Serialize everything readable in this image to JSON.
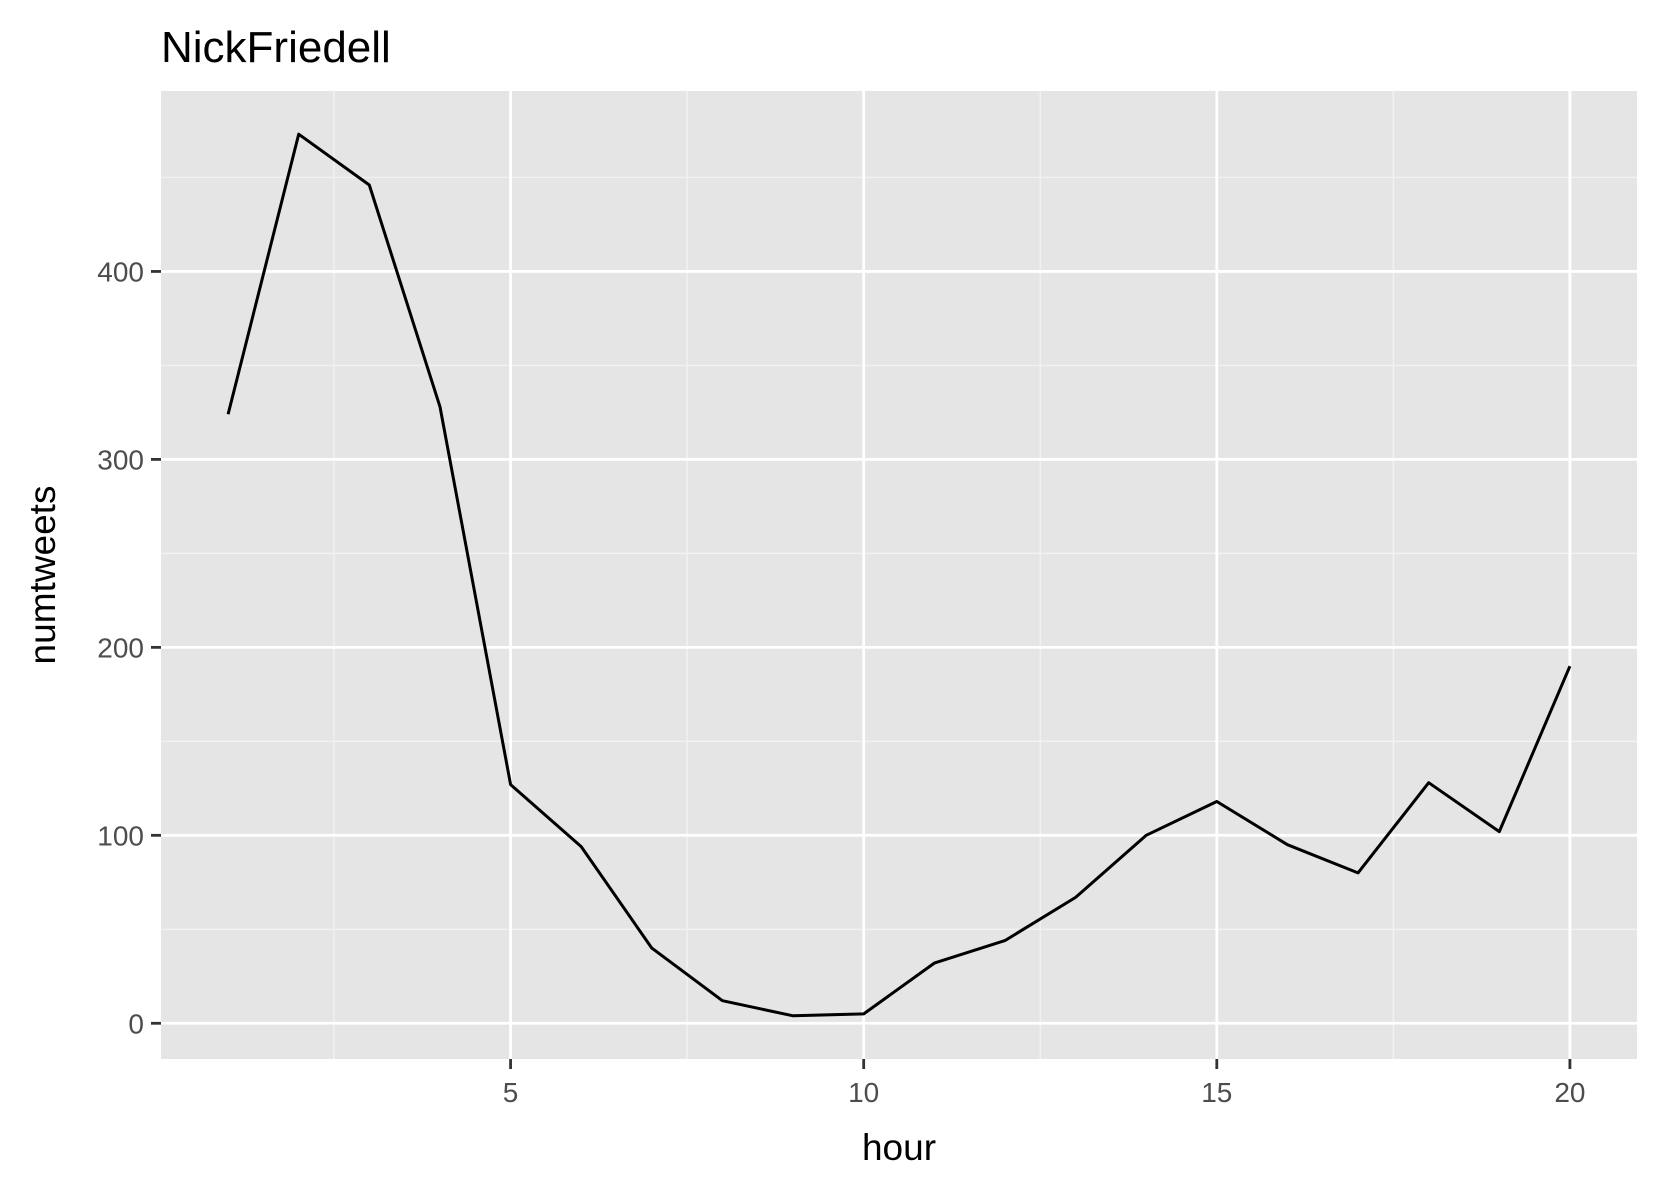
{
  "colors": {
    "panel_background": "#e5e5e5",
    "grid_major": "#ffffff",
    "grid_minor": "#f2f2f2",
    "line": "#000000",
    "tick_label": "#4d4d4d",
    "tick_mark": "#333333"
  },
  "chart_data": {
    "type": "line",
    "title": "NickFriedell",
    "xlabel": "hour",
    "ylabel": "numtweets",
    "xlim": [
      0.05,
      20.95
    ],
    "ylim": [
      -19,
      496
    ],
    "x_ticks": [
      5,
      10,
      15,
      20
    ],
    "x_tick_labels": [
      "5",
      "10",
      "15",
      "20"
    ],
    "y_ticks": [
      0,
      100,
      200,
      300,
      400
    ],
    "y_tick_labels": [
      "0",
      "100",
      "200",
      "300",
      "400"
    ],
    "grid": true,
    "legend": "none",
    "series": [
      {
        "x": [
          1,
          2,
          3,
          4,
          5,
          6,
          7,
          8,
          9,
          10,
          11,
          12,
          13,
          14,
          15,
          16,
          17,
          18,
          19,
          20
        ],
        "values": [
          324,
          473,
          446,
          328,
          127,
          94,
          40,
          12,
          4,
          5,
          32,
          44,
          67,
          100,
          118,
          95,
          80,
          128,
          102,
          190
        ]
      }
    ]
  }
}
